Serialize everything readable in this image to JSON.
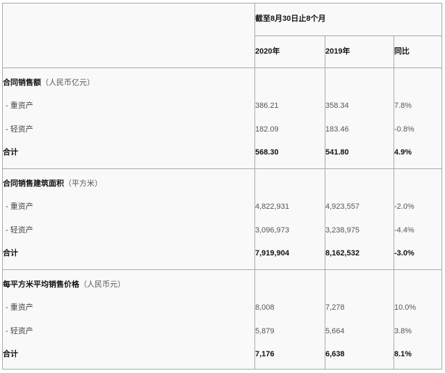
{
  "header": {
    "period": "截至8月30日止8个月",
    "columns": [
      "2020年",
      "2019年",
      "同比"
    ]
  },
  "sections": [
    {
      "title": "合同销售额",
      "unit": "（人民币亿元）",
      "rows": [
        {
          "label": "- 重资产",
          "y2020": "386.21",
          "y2019": "358.34",
          "yoy": "7.8%"
        },
        {
          "label": "- 轻资产",
          "y2020": "182.09",
          "y2019": "183.46",
          "yoy": "-0.8%"
        },
        {
          "label": "合计",
          "y2020": "568.30",
          "y2019": "541.80",
          "yoy": "4.9%"
        }
      ]
    },
    {
      "title": "合同销售建筑面积",
      "unit": "（平方米）",
      "rows": [
        {
          "label": "- 重资产",
          "y2020": "4,822,931",
          "y2019": "4,923,557",
          "yoy": "-2.0%"
        },
        {
          "label": "- 轻资产",
          "y2020": "3,096,973",
          "y2019": "3,238,975",
          "yoy": "-4.4%"
        },
        {
          "label": "合计",
          "y2020": "7,919,904",
          "y2019": "8,162,532",
          "yoy": "-3.0%"
        }
      ]
    },
    {
      "title": "每平方米平均销售价格",
      "unit": "（人民币元）",
      "rows": [
        {
          "label": "- 重资产",
          "y2020": "8,008",
          "y2019": "7,278",
          "yoy": "10.0%"
        },
        {
          "label": "- 轻资产",
          "y2020": "5,879",
          "y2019": "5,664",
          "yoy": "3.8%"
        },
        {
          "label": "合计",
          "y2020": "7,176",
          "y2019": "6,638",
          "yoy": "8.1%"
        }
      ]
    }
  ]
}
